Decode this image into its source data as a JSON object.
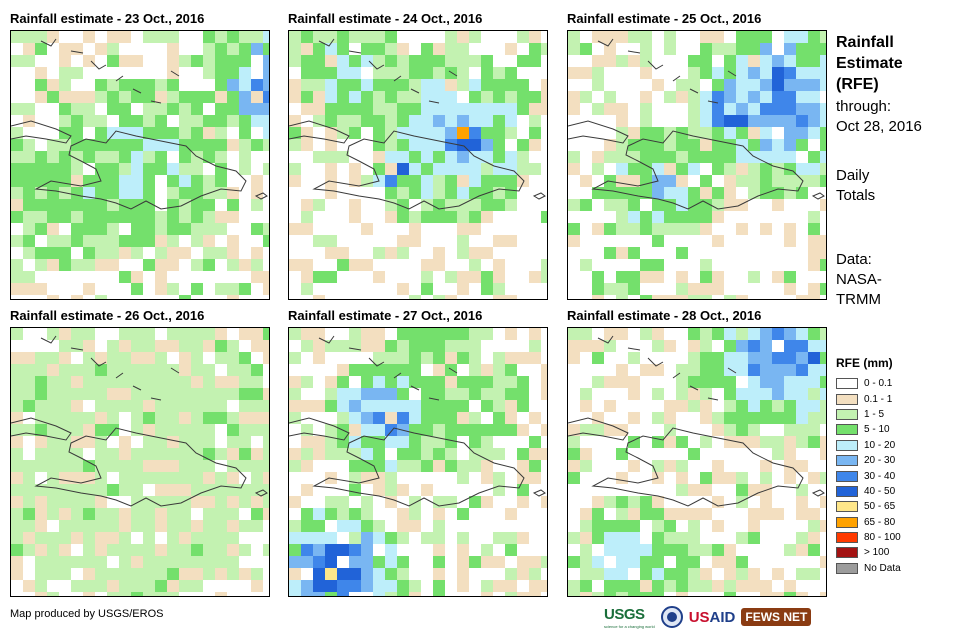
{
  "panels": [
    {
      "title": "Rainfall estimate - 23 Oct., 2016"
    },
    {
      "title": "Rainfall estimate - 24 Oct., 2016"
    },
    {
      "title": "Rainfall estimate - 25 Oct., 2016"
    },
    {
      "title": "Rainfall estimate - 26 Oct., 2016"
    },
    {
      "title": "Rainfall estimate - 27 Oct., 2016"
    },
    {
      "title": "Rainfall estimate - 28 Oct., 2016"
    }
  ],
  "sidebar": {
    "title_line1": "Rainfall",
    "title_line2": "Estimate",
    "title_line3": "(RFE)",
    "through_label": "through:",
    "through_date": "Oct 28, 2016",
    "daily_line1": "Daily",
    "daily_line2": "Totals",
    "data_line1": "Data:",
    "data_line2": "NASA-",
    "data_line3": "TRMM"
  },
  "legend": {
    "title": "RFE (mm)",
    "items": [
      {
        "label": "0 - 0.1",
        "color": "#ffffff"
      },
      {
        "label": "0.1 - 1",
        "color": "#f3dfc0"
      },
      {
        "label": "1 - 5",
        "color": "#c3f2b1"
      },
      {
        "label": "5 - 10",
        "color": "#74e06c"
      },
      {
        "label": "10 - 20",
        "color": "#bdeefa"
      },
      {
        "label": "20 - 30",
        "color": "#79b6f2"
      },
      {
        "label": "30 - 40",
        "color": "#3f86ea"
      },
      {
        "label": "40 - 50",
        "color": "#2163d8"
      },
      {
        "label": "50 - 65",
        "color": "#ffe78a"
      },
      {
        "label": "65 - 80",
        "color": "#ffa200"
      },
      {
        "label": "80 - 100",
        "color": "#ff3a00"
      },
      {
        "label": "> 100",
        "color": "#a31212"
      },
      {
        "label": "No Data",
        "color": "#9c9c9c"
      }
    ]
  },
  "footer": {
    "credit": "Map produced by USGS/EROS"
  },
  "logos": {
    "usgs": "USGS",
    "usgs_tagline": "science for a changing world",
    "usaid_us": "US",
    "usaid_aid": "AID",
    "fews": "FEWS NET"
  }
}
